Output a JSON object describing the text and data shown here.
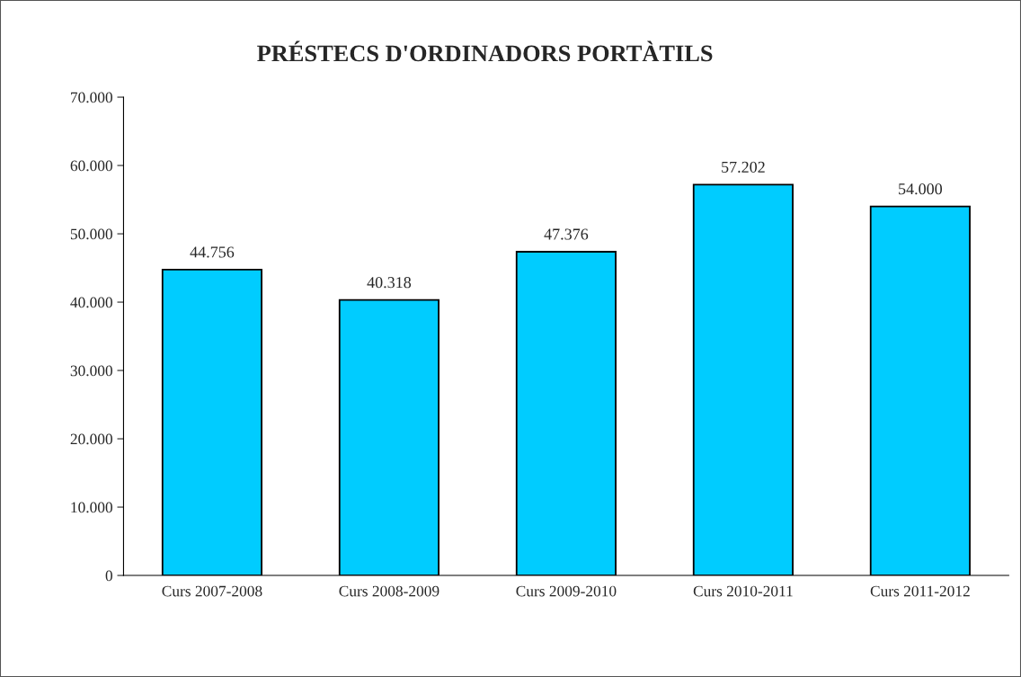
{
  "chart_data": {
    "type": "bar",
    "title": "PRÉSTECS D'ORDINADORS PORTÀTILS",
    "categories": [
      "Curs 2007-2008",
      "Curs 2008-2009",
      "Curs 2009-2010",
      "Curs 2010-2011",
      "Curs 2011-2012"
    ],
    "values": [
      44756,
      40318,
      47376,
      57202,
      54000
    ],
    "value_labels": [
      "44.756",
      "40.318",
      "47.376",
      "57.202",
      "54.000"
    ],
    "color": "#00ccff",
    "ylim": [
      0,
      70000
    ],
    "yticks": [
      {
        "value": 0,
        "label": "0"
      },
      {
        "value": 10000,
        "label": "10.000"
      },
      {
        "value": 20000,
        "label": "20.000"
      },
      {
        "value": 30000,
        "label": "30.000"
      },
      {
        "value": 40000,
        "label": "40.000"
      },
      {
        "value": 50000,
        "label": "50.000"
      },
      {
        "value": 60000,
        "label": "60.000"
      },
      {
        "value": 70000,
        "label": "70.000"
      }
    ],
    "grid": false,
    "legend": false
  }
}
